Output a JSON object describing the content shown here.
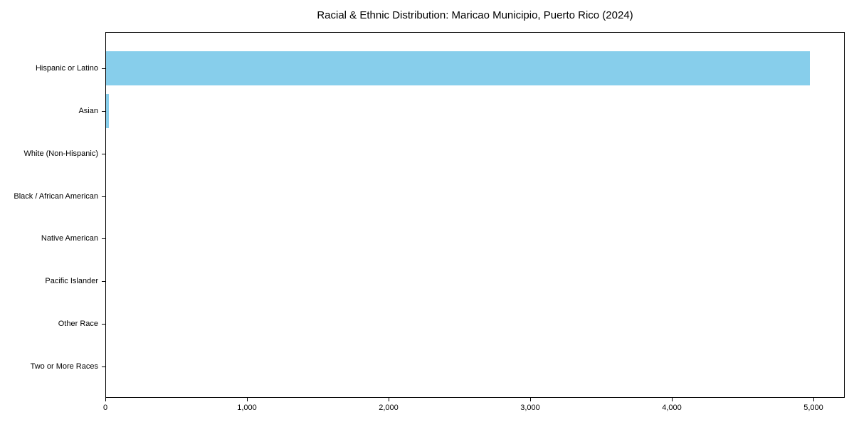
{
  "title": "Racial & Ethnic Distribution: Maricao Municipio, Puerto Rico (2024)",
  "colors": {
    "bar": "#87CEEB",
    "axis": "#000000",
    "text": "#000000",
    "background": "#ffffff"
  },
  "chart_data": {
    "type": "bar",
    "orientation": "horizontal",
    "title": "Racial & Ethnic Distribution: Maricao Municipio, Puerto Rico (2024)",
    "categories": [
      "Hispanic or Latino",
      "Asian",
      "White (Non-Hispanic)",
      "Black / African American",
      "Native American",
      "Pacific Islander",
      "Other Race",
      "Two or More Races"
    ],
    "values": [
      4970,
      18,
      0,
      0,
      0,
      0,
      0,
      0
    ],
    "x_ticks": [
      0,
      1000,
      2000,
      3000,
      4000,
      5000
    ],
    "x_tick_labels": [
      "0",
      "1,000",
      "2,000",
      "3,000",
      "4,000",
      "5,000"
    ],
    "xlim": [
      0,
      5220
    ],
    "xlabel": "",
    "ylabel": "",
    "grid": false,
    "legend": null,
    "bar_color": "#87CEEB"
  }
}
